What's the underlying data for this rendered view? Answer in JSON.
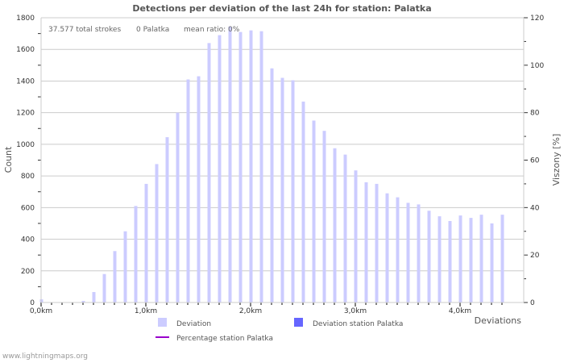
{
  "chart_data": {
    "type": "bar",
    "title": "Detections per deviation of the last 24h for station: Palatka",
    "xlabel": "Deviations",
    "ylabel": "Count",
    "y2label": "Viszony [%]",
    "ylim": [
      0,
      1800
    ],
    "y2lim": [
      0,
      120
    ],
    "yticks": [
      "0",
      "200",
      "400",
      "600",
      "800",
      "1000",
      "1200",
      "1400",
      "1600",
      "1800"
    ],
    "y2ticks": [
      "0",
      "20",
      "40",
      "60",
      "80",
      "100",
      "120"
    ],
    "xticks": [
      "0,0km",
      "1,0km",
      "2,0km",
      "3,0km",
      "4,0km"
    ],
    "bin_km": 0.1,
    "grid": true,
    "legend_position": "bottom",
    "stats": [
      "37.577 total strokes",
      "0 Palatka",
      "mean ratio: 0%"
    ],
    "series": [
      {
        "name": "Deviation",
        "color": "#ccccff",
        "values": [
          20,
          0,
          0,
          0,
          10,
          66,
          180,
          325,
          450,
          610,
          750,
          875,
          1045,
          1200,
          1410,
          1430,
          1640,
          1690,
          1745,
          1710,
          1720,
          1715,
          1480,
          1420,
          1405,
          1270,
          1150,
          1085,
          975,
          935,
          835,
          760,
          750,
          690,
          665,
          630,
          620,
          580,
          545,
          515,
          550,
          535,
          555,
          500,
          555
        ]
      },
      {
        "name": "Deviation station Palatka",
        "color": "#6666ff",
        "values": []
      },
      {
        "name": "Percentage station Palatka",
        "color": "#9900cc",
        "values": []
      }
    ]
  },
  "credit": "www.lightningmaps.org"
}
